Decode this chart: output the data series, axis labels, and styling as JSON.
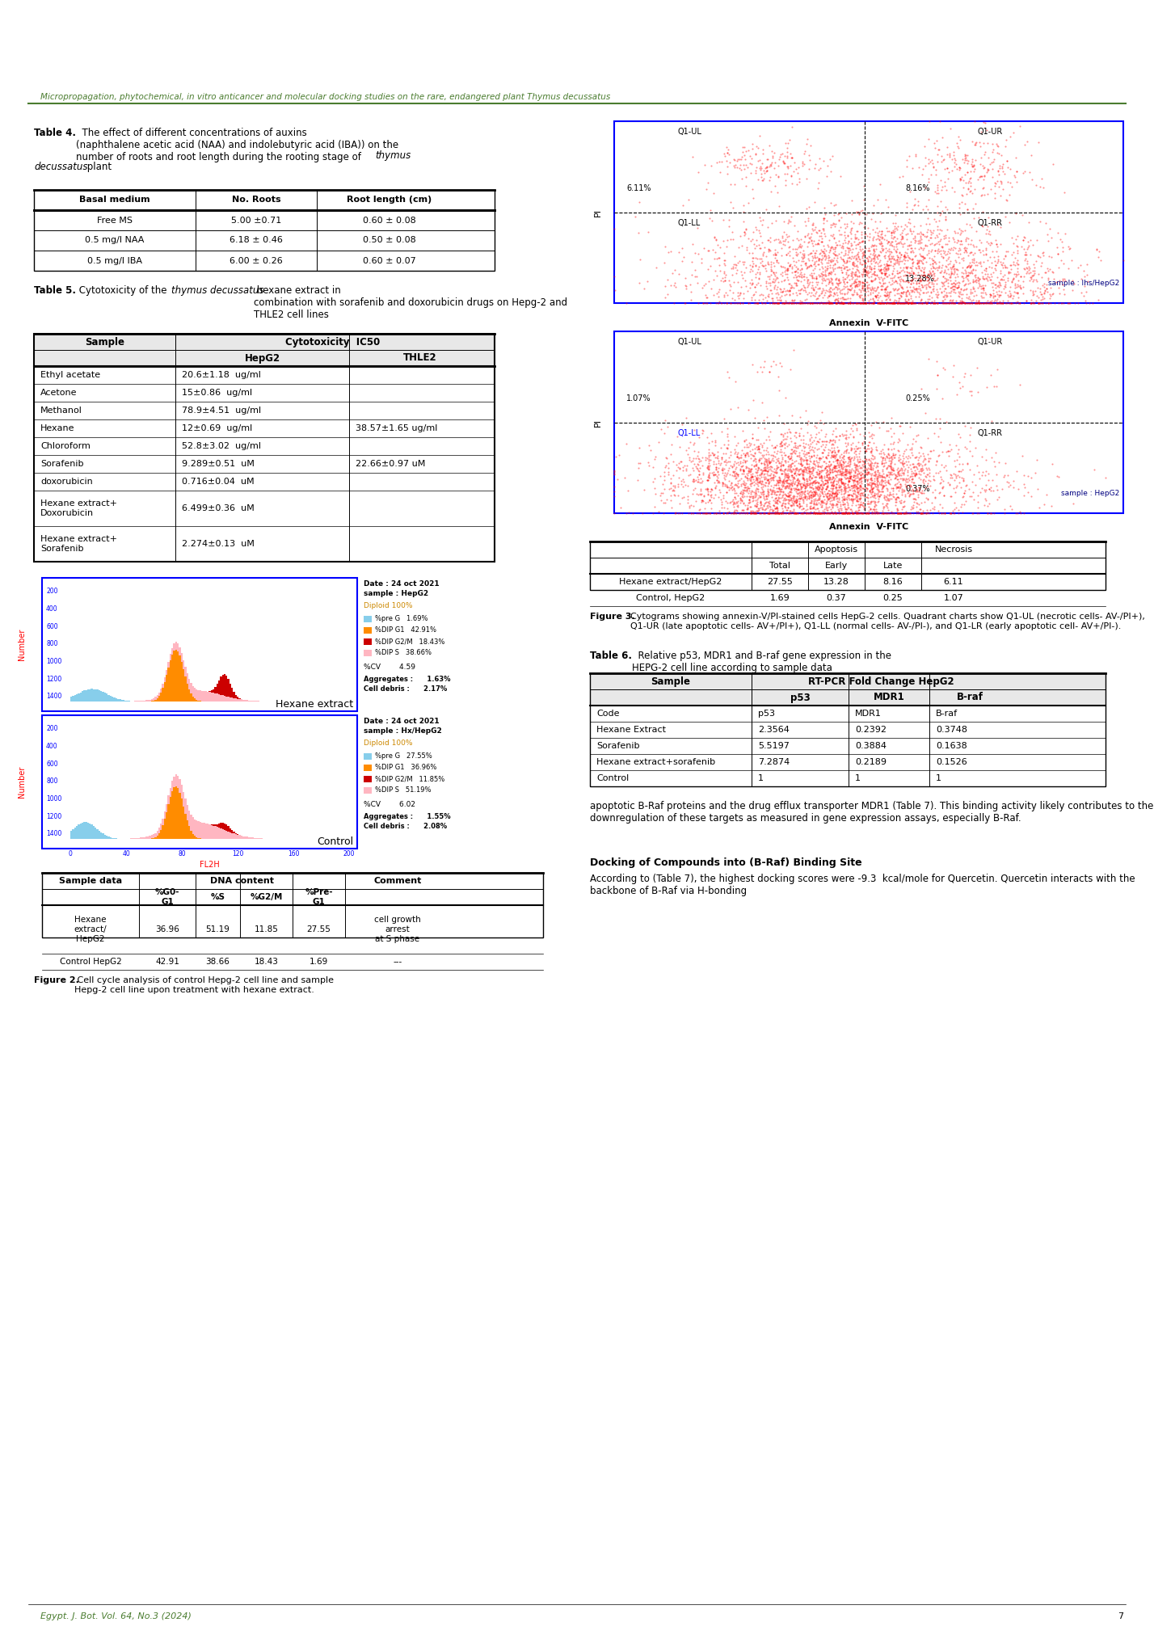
{
  "page_title": "Micropropagation, phytochemical, in vitro anticancer and molecular docking studies on the rare, endangered plant Thymus decussatus",
  "header_line_color": "#4a7c2f",
  "table4_caption": "Table 4.  The effect of different concentrations of auxins (naphthalene acetic acid (NAA) and indolebutyric acid (IBA)) on the number of roots and root length during the rooting stage of thymus decussatus plant",
  "table4_headers": [
    "Basal medium",
    "No. Roots",
    "Root length (cm)"
  ],
  "table4_rows": [
    [
      "Free MS",
      "5.00 ±0.71",
      "0.60 ± 0.08"
    ],
    [
      "0.5 mg/l NAA",
      "6.18 ± 0.46",
      "0.50 ± 0.08"
    ],
    [
      "0.5 mg/l IBA",
      "6.00 ± 0.26",
      "0.60 ± 0.07"
    ]
  ],
  "table5_caption": "Table 5. Cytotoxicity of the thymus decussatus hexane extract in combination with sorafenib and doxorubicin drugs on Hepg-2 and THLE2 cell lines",
  "table5_headers_row1": [
    "Sample",
    "Cytotoxicity IC50",
    ""
  ],
  "table5_headers_row2": [
    "",
    "HepG2",
    "THLE2"
  ],
  "table5_rows": [
    [
      "Ethyl acetate",
      "20.6±1.18  ug/ml",
      ""
    ],
    [
      "Acetone",
      "15±0.86  ug/ml",
      ""
    ],
    [
      "Methanol",
      "78.9±4.51  ug/ml",
      ""
    ],
    [
      "Hexane",
      "12±0.69  ug/ml",
      "38.57±1.65 ug/ml"
    ],
    [
      "Chloroform",
      "52.8±3.02  ug/ml",
      ""
    ],
    [
      "Sorafenib",
      "9.289±0.51  uM",
      "22.66±0.97 uM"
    ],
    [
      "doxorubicin",
      "0.716±0.04  uM",
      ""
    ],
    [
      "Hexane extract+\nDoxorubicin",
      "6.499±0.36  uM",
      ""
    ],
    [
      "Hexane extract+\nSorafenib",
      "2.274±0.13  uM",
      ""
    ]
  ],
  "fig2_label": "Figure 2. Cell cycle analysis of control Hepg-2 cell line and sample Hepg-2 cell line upon treatment with hexane extract.",
  "fig3_label": "Figure 3. Cytograms showing annexin-V/PI-stained cells HepG-2 cells. Quadrant charts show Q1-UL (necrotic cells- AV-/PI+), Q1-UR (late apoptotic cells- AV+/PI+), Q1-LL (normal cells- AV-/PI-), and Q1-LR (early apoptotic cell- AV+/PI-).",
  "fig3_table_headers": [
    "",
    "Apoptosis",
    "",
    "",
    "Necrosis"
  ],
  "fig3_table_subheaders": [
    "",
    "Total",
    "Early",
    "Late",
    ""
  ],
  "fig3_table_rows": [
    [
      "Hexane extract/HepG2",
      "27.55",
      "13.28",
      "8.16",
      "6.11"
    ],
    [
      "Control, HepG2",
      "1.69",
      "0.37",
      "0.25",
      "1.07"
    ]
  ],
  "table6_caption": "Table 6.  Relative p53, MDR1 and B-raf gene expression in the HEPG-2 cell line according to sample data",
  "table6_headers": [
    "Sample",
    "RT-PCR Fold Change HepG2",
    "",
    ""
  ],
  "table6_subheaders": [
    "",
    "p53",
    "MDR1",
    "B-raf"
  ],
  "table6_rows": [
    [
      "Code",
      "p53",
      "MDR1",
      "B-raf"
    ],
    [
      "Hexane Extract",
      "2.3564",
      "0.2392",
      "0.3748"
    ],
    [
      "Sorafenib",
      "5.5197",
      "0.3884",
      "0.1638"
    ],
    [
      "Hexane extract+sorafenib",
      "7.2874",
      "0.2189",
      "0.1526"
    ],
    [
      "Control",
      "1",
      "1",
      "1"
    ]
  ],
  "body_text1": "apoptotic B-Raf proteins and the drug efflux transporter MDR1 (Table 7). This binding activity likely contributes to the downregulation of these targets as measured in gene expression assays, especially B-Raf.",
  "docking_heading": "Docking of Compounds into (B-Raf) Binding Site",
  "body_text2": "According to (Table 7), the highest docking scores were -9.3  kcal/mole for Quercetin. Quercetin interacts with the backbone of B-Raf via H-bonding",
  "footer_text": "Egypt. J. Bot. Vol. 64, No.3 (2024)",
  "footer_page": "7",
  "scatter1_title": "sample : Ihs/HepG2",
  "scatter1_q1ul": "6.11%",
  "scatter1_q1ur": "8.16%",
  "scatter1_q1ll_label": "Q1-LL",
  "scatter1_q1rr": "13.28%",
  "scatter2_title": "sample : HepG2",
  "scatter2_q1ul": "1.07%",
  "scatter2_q1ur": "0.25%",
  "scatter2_q1ll_label": "Q1-LL",
  "scatter2_q1rr": "0.37%",
  "hist1_date": "Date : 24 oct 2021",
  "hist1_sample": "sample : HepG2",
  "hist1_diploid": "Diploid 100%",
  "hist1_legend": [
    [
      "%pre G",
      "1.69%",
      "#87CEEB"
    ],
    [
      "%DIP G1",
      "42.91%",
      "#FF8C00"
    ],
    [
      "%DIP G2/M",
      "18.43%",
      "#CC0000"
    ],
    [
      "%DIP S",
      "38.66%",
      "#FFB6C1"
    ]
  ],
  "hist1_cv": "%CV        4.59",
  "hist1_agg": "Aggregates :      1.63%",
  "hist1_debris": "Cell debris :      2.17%",
  "hist1_label": "Hexane extract",
  "hist2_date": "Date : 24 oct 2021",
  "hist2_sample": "sample : Hx/HepG2",
  "hist2_diploid": "Diploid 100%",
  "hist2_legend": [
    [
      "%pre G",
      "27.55%",
      "#87CEEB"
    ],
    [
      "%DIP G1",
      "36.96%",
      "#FF8C00"
    ],
    [
      "%DIP G2/M",
      "11.85%",
      "#CC0000"
    ],
    [
      "%DIP S",
      "51.19%",
      "#FFB6C1"
    ]
  ],
  "hist2_cv": "%CV        6.02",
  "hist2_agg": "Aggregates :      1.55%",
  "hist2_debris": "Cell debris :      2.08%",
  "hist2_label": "Control",
  "dna_table_headers": [
    "Sample data",
    "DNA content",
    "",
    "",
    "",
    "Comment"
  ],
  "dna_table_subheaders": [
    "",
    "%G0-\nG1",
    "%S",
    "%G2/M",
    "%Pre-\nG1",
    ""
  ],
  "dna_table_rows": [
    [
      "Hexane\nextract/\nHepG2",
      "36.96",
      "51.19",
      "11.85",
      "27.55",
      "cell growth\narrest\nat S phase"
    ],
    [
      "Control HepG2",
      "42.91",
      "38.66",
      "18.43",
      "1.69",
      "---"
    ]
  ]
}
